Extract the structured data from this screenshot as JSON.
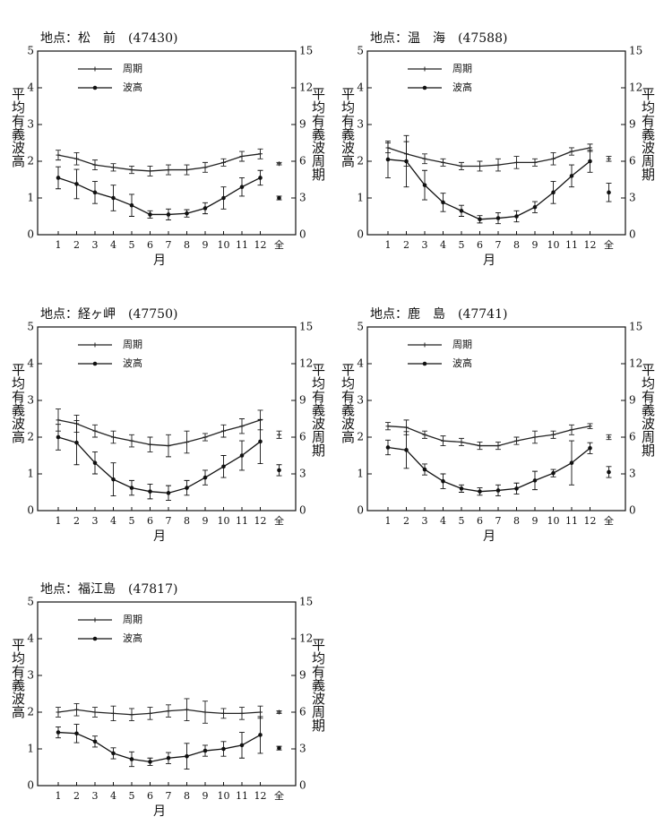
{
  "chart_data": [
    {
      "type": "line",
      "title": "地点：松　前　(47430)",
      "xlabel": "月",
      "ylabel": "平均有義波高",
      "y2label": "平均有義波周期",
      "categories": [
        "1",
        "2",
        "3",
        "4",
        "5",
        "6",
        "7",
        "8",
        "9",
        "10",
        "11",
        "12"
      ],
      "overall_label": "全",
      "ylim": [
        0,
        5
      ],
      "yticks": [
        0,
        1,
        2,
        3,
        4,
        5
      ],
      "y2lim": [
        0,
        15
      ],
      "y2ticks": [
        0,
        3,
        6,
        9,
        12,
        15
      ],
      "legend": "upper left",
      "series": [
        {
          "name": "周期",
          "axis": "y2",
          "marker": "plus",
          "color": "#222",
          "values": [
            6.5,
            6.2,
            5.7,
            5.5,
            5.3,
            5.2,
            5.3,
            5.3,
            5.5,
            5.9,
            6.4,
            6.6
          ],
          "errors": [
            0.4,
            0.5,
            0.4,
            0.3,
            0.3,
            0.4,
            0.4,
            0.4,
            0.4,
            0.3,
            0.4,
            0.4
          ],
          "overall": 5.8,
          "overall_error": 0.1
        },
        {
          "name": "波高",
          "axis": "y",
          "marker": "dot",
          "color": "#111",
          "values": [
            1.55,
            1.38,
            1.15,
            1.0,
            0.8,
            0.55,
            0.55,
            0.58,
            0.72,
            1.0,
            1.3,
            1.55
          ],
          "errors": [
            0.3,
            0.4,
            0.3,
            0.35,
            0.3,
            0.1,
            0.15,
            0.1,
            0.15,
            0.3,
            0.25,
            0.2
          ],
          "overall": 1.0,
          "overall_error": 0.05
        }
      ]
    },
    {
      "type": "line",
      "title": "地点：温　海　(47588)",
      "xlabel": "月",
      "ylabel": "平均有義波高",
      "y2label": "平均有義波周期",
      "categories": [
        "1",
        "2",
        "3",
        "4",
        "5",
        "6",
        "7",
        "8",
        "9",
        "10",
        "11",
        "12"
      ],
      "overall_label": "全",
      "ylim": [
        0,
        5
      ],
      "yticks": [
        0,
        1,
        2,
        3,
        4,
        5
      ],
      "y2lim": [
        0,
        15
      ],
      "y2ticks": [
        0,
        3,
        6,
        9,
        12,
        15
      ],
      "legend": "upper left",
      "series": [
        {
          "name": "周期",
          "axis": "y2",
          "marker": "plus",
          "color": "#222",
          "values": [
            7.1,
            6.6,
            6.2,
            5.9,
            5.6,
            5.6,
            5.7,
            5.9,
            5.9,
            6.2,
            6.8,
            7.1
          ],
          "errors": [
            0.4,
            1.0,
            0.4,
            0.3,
            0.3,
            0.4,
            0.5,
            0.5,
            0.3,
            0.5,
            0.3,
            0.3
          ],
          "overall": 6.2,
          "overall_error": 0.2
        },
        {
          "name": "波高",
          "axis": "y",
          "marker": "dot",
          "color": "#111",
          "values": [
            2.05,
            2.0,
            1.35,
            0.88,
            0.65,
            0.42,
            0.45,
            0.5,
            0.75,
            1.15,
            1.6,
            2.0
          ],
          "errors": [
            0.5,
            0.7,
            0.4,
            0.25,
            0.15,
            0.1,
            0.15,
            0.15,
            0.15,
            0.3,
            0.3,
            0.3
          ],
          "overall": 1.15,
          "overall_error": 0.25
        }
      ]
    },
    {
      "type": "line",
      "title": "地点：経ヶ岬　(47750)",
      "xlabel": "月",
      "ylabel": "平均有義波高",
      "y2label": "平均有義波周期",
      "categories": [
        "1",
        "2",
        "3",
        "4",
        "5",
        "6",
        "7",
        "8",
        "9",
        "10",
        "11",
        "12"
      ],
      "overall_label": "全",
      "ylim": [
        0,
        5
      ],
      "yticks": [
        0,
        1,
        2,
        3,
        4,
        5
      ],
      "y2lim": [
        0,
        15
      ],
      "y2ticks": [
        0,
        3,
        6,
        9,
        12,
        15
      ],
      "legend": "upper left",
      "series": [
        {
          "name": "周期",
          "axis": "y2",
          "marker": "plus",
          "color": "#222",
          "values": [
            7.4,
            7.1,
            6.5,
            6.0,
            5.7,
            5.4,
            5.3,
            5.6,
            6.0,
            6.5,
            6.9,
            7.4
          ],
          "errors": [
            0.9,
            0.7,
            0.5,
            0.5,
            0.5,
            0.6,
            0.9,
            0.9,
            0.3,
            0.5,
            0.6,
            0.8
          ],
          "overall": 6.2,
          "overall_error": 0.3
        },
        {
          "name": "波高",
          "axis": "y",
          "marker": "dot",
          "color": "#111",
          "values": [
            2.0,
            1.85,
            1.3,
            0.85,
            0.62,
            0.52,
            0.48,
            0.62,
            0.9,
            1.2,
            1.5,
            1.88
          ],
          "errors": [
            0.35,
            0.6,
            0.3,
            0.45,
            0.2,
            0.2,
            0.2,
            0.2,
            0.2,
            0.3,
            0.4,
            0.6
          ],
          "overall": 1.1,
          "overall_error": 0.15
        }
      ]
    },
    {
      "type": "line",
      "title": "地点：鹿　島　(47741)",
      "xlabel": "月",
      "ylabel": "平均有義波高",
      "y2label": "平均有義波周期",
      "categories": [
        "1",
        "2",
        "3",
        "4",
        "5",
        "6",
        "7",
        "8",
        "9",
        "10",
        "11",
        "12"
      ],
      "overall_label": "全",
      "ylim": [
        0,
        5
      ],
      "yticks": [
        0,
        1,
        2,
        3,
        4,
        5
      ],
      "y2lim": [
        0,
        15
      ],
      "y2ticks": [
        0,
        3,
        6,
        9,
        12,
        15
      ],
      "legend": "upper left",
      "series": [
        {
          "name": "周期",
          "axis": "y2",
          "marker": "plus",
          "color": "#222",
          "values": [
            6.9,
            6.8,
            6.2,
            5.7,
            5.6,
            5.3,
            5.3,
            5.7,
            6.0,
            6.2,
            6.6,
            6.9
          ],
          "errors": [
            0.3,
            0.6,
            0.3,
            0.4,
            0.3,
            0.3,
            0.3,
            0.3,
            0.5,
            0.3,
            0.4,
            0.2
          ],
          "overall": 6.0,
          "overall_error": 0.2
        },
        {
          "name": "波高",
          "axis": "y",
          "marker": "dot",
          "color": "#111",
          "values": [
            1.72,
            1.65,
            1.12,
            0.8,
            0.6,
            0.52,
            0.55,
            0.6,
            0.82,
            1.02,
            1.3,
            1.7
          ],
          "errors": [
            0.2,
            0.5,
            0.15,
            0.2,
            0.1,
            0.1,
            0.15,
            0.15,
            0.25,
            0.1,
            0.6,
            0.15
          ],
          "overall": 1.05,
          "overall_error": 0.15
        }
      ]
    },
    {
      "type": "line",
      "title": "地点：福江島　(47817)",
      "xlabel": "月",
      "ylabel": "平均有義波高",
      "y2label": "平均有義波周期",
      "categories": [
        "1",
        "2",
        "3",
        "4",
        "5",
        "6",
        "7",
        "8",
        "9",
        "10",
        "11",
        "12"
      ],
      "overall_label": "全",
      "ylim": [
        0,
        5
      ],
      "yticks": [
        0,
        1,
        2,
        3,
        4,
        5
      ],
      "y2lim": [
        0,
        15
      ],
      "y2ticks": [
        0,
        3,
        6,
        9,
        12,
        15
      ],
      "legend": "upper left",
      "series": [
        {
          "name": "周期",
          "axis": "y2",
          "marker": "plus",
          "color": "#222",
          "values": [
            6.0,
            6.2,
            6.0,
            5.9,
            5.8,
            5.9,
            6.1,
            6.2,
            6.0,
            5.9,
            5.9,
            6.0
          ],
          "errors": [
            0.4,
            0.5,
            0.4,
            0.6,
            0.5,
            0.5,
            0.5,
            0.9,
            0.9,
            0.4,
            0.5,
            0.5
          ],
          "overall": 6.0,
          "overall_error": 0.1
        },
        {
          "name": "波高",
          "axis": "y",
          "marker": "dot",
          "color": "#111",
          "values": [
            1.45,
            1.42,
            1.2,
            0.88,
            0.72,
            0.65,
            0.75,
            0.8,
            0.95,
            1.0,
            1.1,
            1.38
          ],
          "errors": [
            0.15,
            0.25,
            0.15,
            0.15,
            0.2,
            0.1,
            0.15,
            0.35,
            0.15,
            0.2,
            0.35,
            0.5
          ],
          "overall": 1.02,
          "overall_error": 0.05
        }
      ]
    }
  ]
}
